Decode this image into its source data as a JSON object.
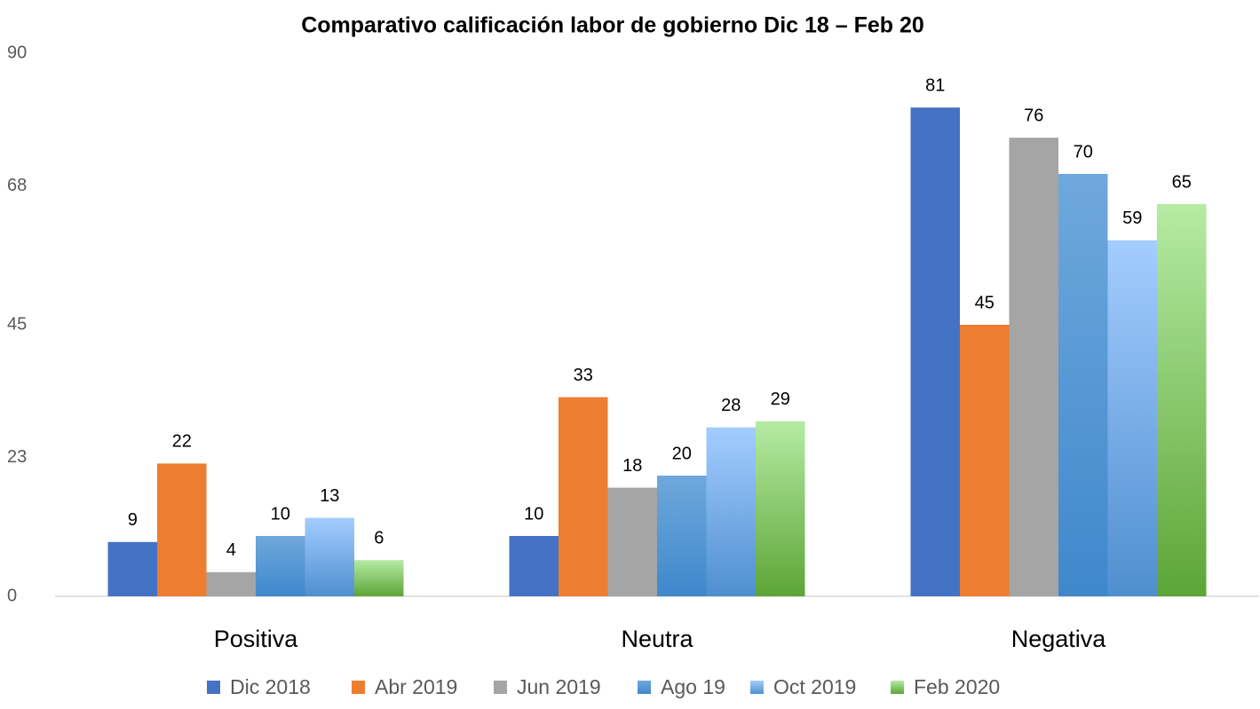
{
  "chart_data": {
    "type": "bar",
    "title": "Comparativo calificación labor de gobierno  Dic 18 – Feb 20",
    "categories": [
      "Positiva",
      "Neutra",
      "Negativa"
    ],
    "series": [
      {
        "name": "Dic 2018",
        "color": "#4472c4",
        "values": [
          9,
          10,
          81
        ]
      },
      {
        "name": "Abr 2019",
        "color": "#ed7d31",
        "values": [
          22,
          33,
          45
        ]
      },
      {
        "name": "Jun 2019",
        "color": "#a5a5a5",
        "values": [
          4,
          18,
          76
        ]
      },
      {
        "name": "Ago 19",
        "color": "#6fa8dc",
        "color_end": "#3f88cc",
        "values": [
          10,
          20,
          70
        ]
      },
      {
        "name": "Oct 2019",
        "color": "#a4cdff",
        "color_end": "#4f8fd0",
        "values": [
          13,
          28,
          59
        ]
      },
      {
        "name": "Feb 2020",
        "color": "#b5eba3",
        "color_end": "#5da537",
        "values": [
          6,
          29,
          65
        ]
      }
    ],
    "ylim": [
      0,
      90
    ],
    "yticks": [
      0,
      23,
      45,
      68,
      90
    ],
    "grid": false,
    "legend": "bottom"
  }
}
